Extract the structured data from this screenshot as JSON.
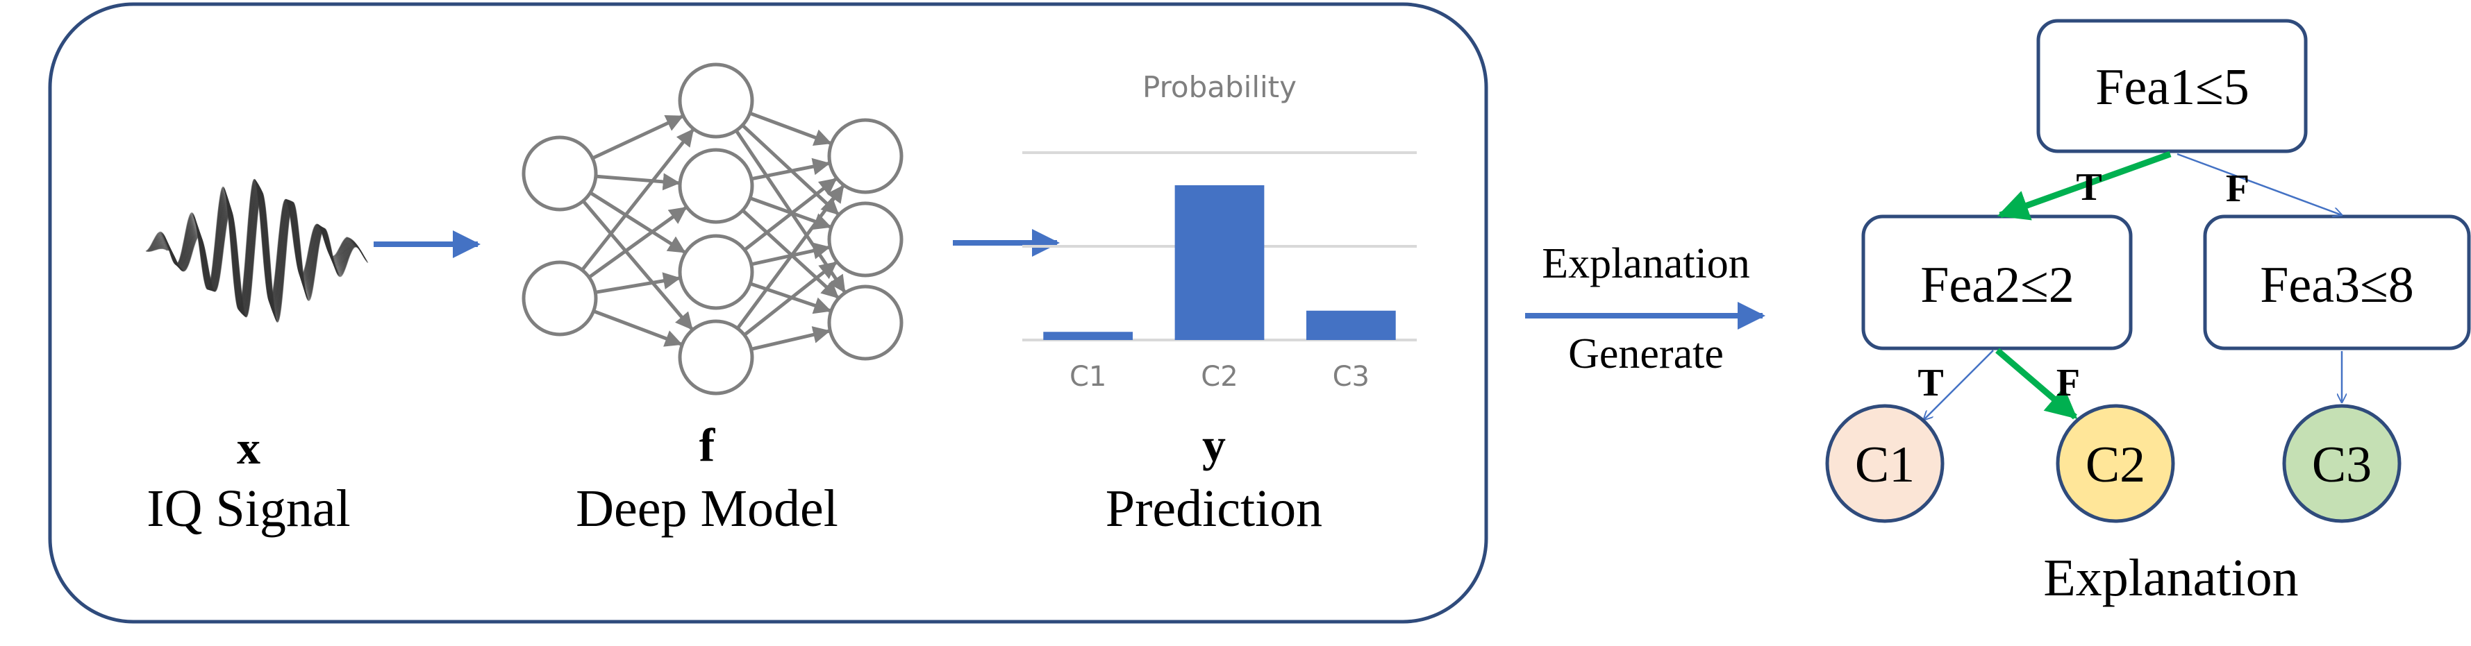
{
  "pipeline": {
    "input": {
      "symbol": "x",
      "label": "IQ Signal"
    },
    "model": {
      "symbol": "f",
      "label": "Deep Model"
    },
    "output": {
      "symbol": "y",
      "label": "Prediction"
    }
  },
  "chart_data": {
    "type": "bar",
    "title": "Probability",
    "categories": [
      "C1",
      "C2",
      "C3"
    ],
    "values": [
      0.05,
      0.95,
      0.18
    ],
    "ylim": [
      0,
      1.15
    ],
    "grid": true,
    "bar_color": "#4472C4"
  },
  "explain_arrow": {
    "top": "Explanation",
    "bottom": "Generate"
  },
  "tree": {
    "root": {
      "label": "Fea1≤5"
    },
    "left": {
      "label": "Fea2≤2"
    },
    "right": {
      "label": "Fea3≤8"
    },
    "edges": {
      "root_left": "T",
      "root_right": "F",
      "left_c1": "T",
      "left_c2": "F"
    },
    "leaves": [
      {
        "label": "C1",
        "color": "#FBE5D6"
      },
      {
        "label": "C2",
        "color": "#FFE699"
      },
      {
        "label": "C3",
        "color": "#C5E0B4"
      }
    ],
    "caption": "Explanation"
  },
  "colors": {
    "arrow_blue": "#4472C4",
    "path_green": "#00B050",
    "node_gray": "#7f7f7f",
    "box_border": "#2F4B7C"
  }
}
